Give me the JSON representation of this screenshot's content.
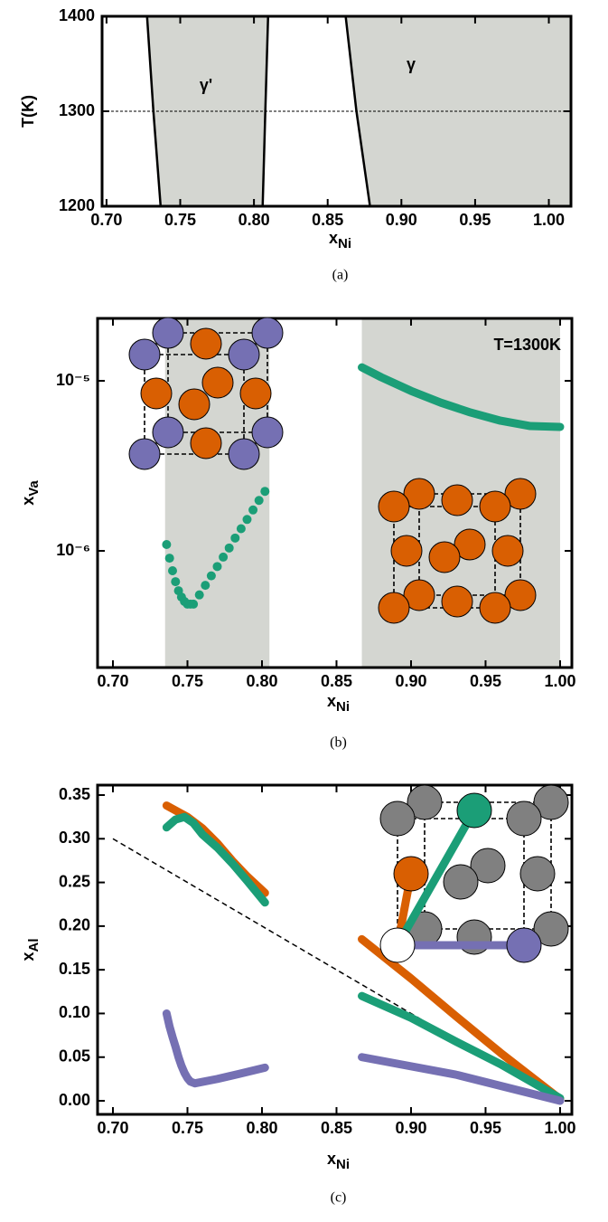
{
  "chart_data": [
    {
      "type": "phase-diagram",
      "xlabel": {
        "main": "x",
        "sub": "Ni"
      },
      "ylabel": "T(K)",
      "caption": "(a)",
      "xlim": [
        0.697,
        1.015
      ],
      "ylim": [
        1200,
        1400
      ],
      "xticks": [
        {
          "value": 0.7,
          "label": "0.70"
        },
        0.75,
        {
          "value": 0.8,
          "label": "0.80"
        },
        0.85,
        {
          "value": 0.9,
          "label": "0.90"
        },
        0.95,
        {
          "value": 1.0,
          "label": "1.00"
        }
      ],
      "yticks": [
        1200,
        1300,
        1400
      ],
      "hline": 1300,
      "fill_color": "#d4d6d1",
      "phases": [
        {
          "label": "γ'",
          "left": {
            "x": [
              0.7275,
              0.7318,
              0.7367
            ],
            "y": [
              1400,
              1300,
              1200
            ]
          },
          "right": {
            "x": [
              0.8096,
              0.8077,
              0.8059
            ],
            "y": [
              1400,
              1300,
              1200
            ]
          }
        },
        {
          "label": "γ",
          "left": {
            "x": [
              0.8622,
              0.8695,
              0.8787
            ],
            "y": [
              1400,
              1300,
              1200
            ]
          }
        }
      ]
    },
    {
      "type": "scatter",
      "ylog": true,
      "xlabel": {
        "main": "x",
        "sub": "Ni"
      },
      "ylabel": {
        "main": "x",
        "sub": "Va"
      },
      "caption": "(b)",
      "annotation": "T=1300K",
      "xlim": [
        0.6897,
        1.0079
      ],
      "ylim": [
        2.06e-07,
        2.33e-05
      ],
      "xticks": [
        {
          "value": 0.7,
          "label": "0.70"
        },
        0.75,
        {
          "value": 0.8,
          "label": "0.80"
        },
        0.85,
        {
          "value": 0.9,
          "label": "0.90"
        },
        0.95,
        {
          "value": 1.0,
          "label": "1.00"
        }
      ],
      "yticks": [
        {
          "value": 1e-06,
          "label": "10⁻⁶"
        },
        {
          "value": 1e-05,
          "label": "10⁻⁵"
        }
      ],
      "fill_color": "#d4d6d1",
      "shaded_regions": [
        [
          0.735,
          0.805
        ],
        [
          0.867,
          1.0
        ]
      ],
      "series": [
        {
          "color": "#1b9e77",
          "x": [
            0.736,
            0.738,
            0.74,
            0.742,
            0.744,
            0.746,
            0.748,
            0.75,
            0.752,
            0.754,
            0.758,
            0.762,
            0.766,
            0.77,
            0.774,
            0.778,
            0.782,
            0.786,
            0.79,
            0.794,
            0.798,
            0.802
          ],
          "values": [
            1.09e-06,
            9.06e-07,
            7.64e-07,
            6.59e-07,
            5.83e-07,
            5.35e-07,
            5.04e-07,
            4.86e-07,
            4.86e-07,
            4.86e-07,
            5.51e-07,
            6.27e-07,
            7.13e-07,
            8.09e-07,
            9.19e-07,
            1.04e-06,
            1.19e-06,
            1.35e-06,
            1.53e-06,
            1.74e-06,
            1.98e-06,
            2.24e-06
          ]
        },
        {
          "color": "#1b9e77",
          "connected": true,
          "x": [
            0.867,
            0.88,
            0.9,
            0.92,
            0.94,
            0.96,
            0.98,
            1.0
          ],
          "values": [
            1.2e-05,
            1.05e-05,
            8.73e-06,
            7.44e-06,
            6.51e-06,
            5.83e-06,
            5.42e-06,
            5.36e-06
          ]
        }
      ]
    },
    {
      "type": "scatter",
      "xlabel": {
        "main": "x",
        "sub": "Ni"
      },
      "ylabel": {
        "main": "x",
        "sub": "Al"
      },
      "caption": "(c)",
      "xlim": [
        0.6897,
        1.0079
      ],
      "ylim": [
        -0.0155,
        0.3614
      ],
      "xticks": [
        {
          "value": 0.7,
          "label": "0.70"
        },
        0.75,
        {
          "value": 0.8,
          "label": "0.80"
        },
        0.85,
        {
          "value": 0.9,
          "label": "0.90"
        },
        0.95,
        {
          "value": 1.0,
          "label": "1.00"
        }
      ],
      "yticks": [
        {
          "value": 0,
          "label": "0.00"
        },
        0.05,
        {
          "value": 0.1,
          "label": "0.10"
        },
        0.15,
        {
          "value": 0.2,
          "label": "0.20"
        },
        0.25,
        {
          "value": 0.3,
          "label": "0.30"
        },
        0.35
      ],
      "reference_line": {
        "x": [
          0.7,
          1.0
        ],
        "y": [
          0.3,
          0.0
        ]
      },
      "series": [
        {
          "color": "#d95f02",
          "connected": true,
          "x": [
            0.736,
            0.75,
            0.76,
            0.77,
            0.78,
            0.79,
            0.802,
            null,
            0.867,
            0.9,
            0.93,
            0.96,
            1.0
          ],
          "values": [
            0.338,
            0.325,
            0.312,
            0.295,
            0.275,
            0.257,
            0.238,
            null,
            0.185,
            0.14,
            0.097,
            0.055,
            0.002
          ]
        },
        {
          "color": "#1b9e77",
          "connected": true,
          "x": [
            0.736,
            0.742,
            0.748,
            0.754,
            0.76,
            0.77,
            0.78,
            0.79,
            0.802,
            null,
            0.867,
            0.9,
            0.93,
            0.96,
            1.0
          ],
          "values": [
            0.313,
            0.322,
            0.325,
            0.318,
            0.305,
            0.29,
            0.272,
            0.252,
            0.227,
            null,
            0.12,
            0.095,
            0.068,
            0.042,
            0.003
          ]
        },
        {
          "color": "#7570b3",
          "connected": true,
          "x": [
            0.736,
            0.738,
            0.74,
            0.742,
            0.744,
            0.746,
            0.748,
            0.75,
            0.752,
            0.755,
            0.77,
            0.785,
            0.802,
            null,
            0.867,
            0.93,
            1.0
          ],
          "values": [
            0.1,
            0.085,
            0.073,
            0.062,
            0.05,
            0.04,
            0.032,
            0.026,
            0.022,
            0.02,
            0.025,
            0.031,
            0.038,
            null,
            0.05,
            0.03,
            0.0
          ]
        }
      ]
    }
  ]
}
